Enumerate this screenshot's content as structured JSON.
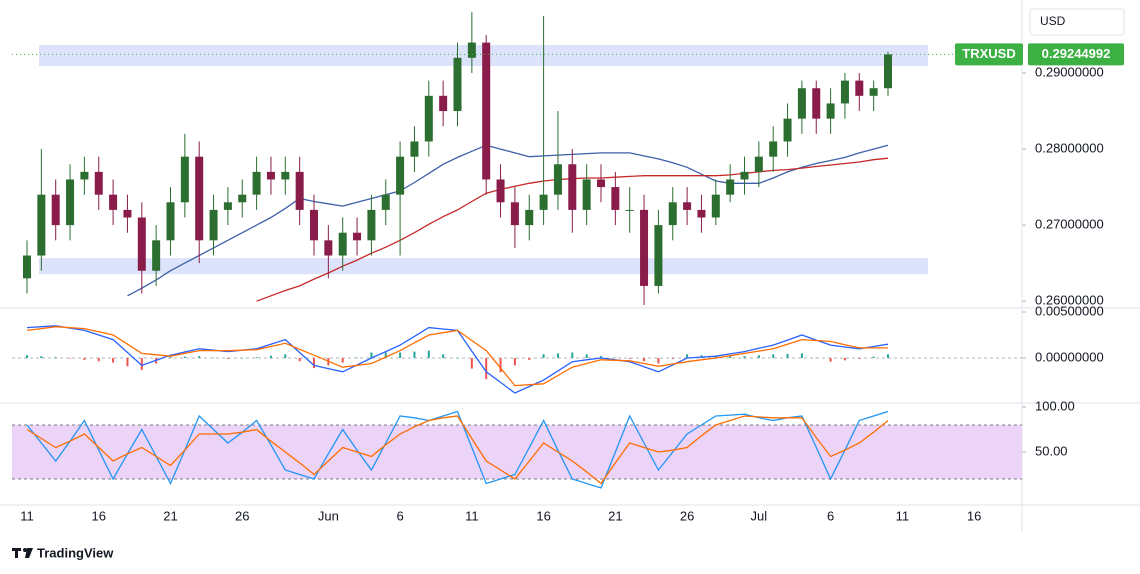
{
  "chart_data": [
    {
      "type": "candlestick",
      "symbol": "TRXUSD",
      "currency": "USD",
      "categories": [
        "11",
        null,
        null,
        null,
        null,
        "16",
        null,
        null,
        null,
        null,
        "21",
        null,
        null,
        null,
        null,
        "26",
        null,
        null,
        null,
        null,
        null,
        "Jun",
        null,
        null,
        null,
        null,
        "6",
        null,
        null,
        null,
        null,
        "11",
        null,
        null,
        null,
        null,
        "16",
        null,
        null,
        null,
        null,
        "21",
        null,
        null,
        null,
        null,
        "26",
        null,
        null,
        null,
        null,
        "Jul",
        null,
        null,
        null,
        null,
        "6",
        null,
        null,
        null,
        null,
        "11",
        null,
        null,
        null,
        null,
        "16"
      ],
      "open": [
        0.263,
        0.266,
        0.274,
        0.27,
        0.276,
        0.277,
        0.274,
        0.272,
        0.271,
        0.264,
        0.268,
        0.273,
        0.279,
        0.268,
        0.272,
        0.273,
        0.274,
        0.277,
        0.276,
        0.277,
        0.272,
        0.268,
        0.266,
        0.269,
        0.268,
        0.272,
        0.274,
        0.279,
        0.281,
        0.287,
        0.285,
        0.292,
        0.294,
        0.276,
        0.273,
        0.27,
        0.272,
        0.274,
        0.278,
        0.272,
        0.276,
        0.275,
        0.272,
        0.272,
        0.262,
        0.27,
        0.273,
        0.272,
        0.271,
        0.274,
        0.276,
        0.277,
        0.279,
        0.281,
        0.284,
        0.288,
        0.284,
        0.286,
        0.289,
        0.287,
        0.288,
        null,
        null,
        null,
        null,
        null,
        null
      ],
      "high": [
        0.268,
        0.28,
        0.276,
        0.278,
        0.279,
        0.279,
        0.276,
        0.274,
        0.273,
        0.27,
        0.275,
        0.282,
        0.281,
        0.274,
        0.275,
        0.276,
        0.279,
        0.279,
        0.279,
        0.279,
        0.274,
        0.27,
        0.271,
        0.271,
        0.274,
        0.276,
        0.281,
        0.283,
        0.289,
        0.289,
        0.294,
        0.298,
        0.295,
        0.278,
        0.275,
        0.274,
        0.2975,
        0.285,
        0.28,
        0.278,
        0.278,
        0.277,
        0.275,
        0.274,
        0.272,
        0.275,
        0.275,
        0.274,
        0.276,
        0.278,
        0.279,
        0.281,
        0.283,
        0.286,
        0.289,
        0.289,
        0.288,
        0.29,
        0.29,
        0.289,
        0.2928,
        null,
        null,
        null,
        null,
        null,
        null
      ],
      "low": [
        0.261,
        0.264,
        0.268,
        0.268,
        0.274,
        0.272,
        0.27,
        0.269,
        0.261,
        0.262,
        0.266,
        0.271,
        0.265,
        0.266,
        0.27,
        0.271,
        0.272,
        0.274,
        0.274,
        0.27,
        0.266,
        0.263,
        0.264,
        0.266,
        0.266,
        0.27,
        0.266,
        0.277,
        0.279,
        0.283,
        0.283,
        0.29,
        0.274,
        0.271,
        0.267,
        0.268,
        0.27,
        0.272,
        0.269,
        0.27,
        0.273,
        0.27,
        0.269,
        0.2595,
        0.261,
        0.268,
        0.27,
        0.269,
        0.27,
        0.273,
        0.274,
        0.275,
        0.277,
        0.279,
        0.282,
        0.282,
        0.282,
        0.284,
        0.285,
        0.285,
        0.287,
        null,
        null,
        null,
        null,
        null,
        null
      ],
      "close": [
        0.266,
        0.274,
        0.27,
        0.276,
        0.277,
        0.274,
        0.272,
        0.271,
        0.264,
        0.268,
        0.273,
        0.279,
        0.268,
        0.272,
        0.273,
        0.274,
        0.277,
        0.276,
        0.277,
        0.272,
        0.268,
        0.266,
        0.269,
        0.268,
        0.272,
        0.274,
        0.279,
        0.281,
        0.287,
        0.285,
        0.292,
        0.294,
        0.276,
        0.273,
        0.27,
        0.272,
        0.274,
        0.278,
        0.272,
        0.276,
        0.275,
        0.272,
        0.272,
        0.262,
        0.27,
        0.273,
        0.272,
        0.271,
        0.274,
        0.276,
        0.277,
        0.279,
        0.281,
        0.284,
        0.288,
        0.284,
        0.286,
        0.289,
        0.287,
        0.288,
        0.29244992,
        null,
        null,
        null,
        null,
        null,
        null
      ],
      "up_color": "#2b6e2f",
      "down_color": "#8a1c4a",
      "last_color": "#3cb043",
      "series": [
        {
          "color": "#3c5fa8",
          "values": [
            null,
            null,
            null,
            null,
            null,
            null,
            null,
            0.2607,
            0.2617,
            0.2628,
            0.264,
            0.265,
            0.266,
            0.267,
            0.268,
            0.269,
            0.27,
            0.271,
            0.2722,
            0.2735,
            0.2731,
            0.2728,
            0.2725,
            0.273,
            0.2735,
            0.274,
            0.2745,
            0.2756,
            0.2768,
            0.278,
            0.2789,
            0.2797,
            0.2805,
            0.28,
            0.2795,
            0.279,
            0.2791,
            0.2792,
            0.2793,
            0.2794,
            0.2795,
            0.2795,
            0.2795,
            0.2791,
            0.2787,
            0.2782,
            0.2776,
            0.2767,
            0.2758,
            0.2755,
            0.2755,
            0.2755,
            0.2762,
            0.277,
            0.2776,
            0.2781,
            0.2785,
            0.2789,
            0.2795,
            0.28,
            0.2805,
            null,
            null,
            null,
            null,
            null,
            null
          ]
        },
        {
          "color": "#c62828",
          "values": [
            null,
            null,
            null,
            null,
            null,
            null,
            null,
            null,
            null,
            null,
            null,
            null,
            null,
            null,
            null,
            null,
            0.26,
            0.2607,
            0.2614,
            0.262,
            0.2629,
            0.2637,
            0.2646,
            0.2654,
            0.2663,
            0.2671,
            0.268,
            0.269,
            0.2701,
            0.2711,
            0.272,
            0.2731,
            0.2742,
            0.2747,
            0.2751,
            0.2755,
            0.2758,
            0.276,
            0.2761,
            0.2762,
            0.2762,
            0.2763,
            0.2764,
            0.2765,
            0.2765,
            0.2765,
            0.2765,
            0.2765,
            0.2765,
            0.2766,
            0.2768,
            0.277,
            0.2772,
            0.2773,
            0.2775,
            0.2777,
            0.2779,
            0.2781,
            0.2783,
            0.2786,
            0.2788,
            null,
            null,
            null,
            null,
            null,
            null
          ]
        }
      ],
      "zones": [
        {
          "low": 0.29092,
          "high": 0.29368
        },
        {
          "low": 0.26355,
          "high": 0.26566
        }
      ],
      "zone_color": "#dce3fb",
      "ylim": [
        0.2591,
        0.2996
      ],
      "yticks": [
        {
          "value": 0.29,
          "label": "0.29000000"
        },
        {
          "value": 0.28,
          "label": "0.28000000"
        },
        {
          "value": 0.27,
          "label": "0.27000000"
        },
        {
          "value": 0.26,
          "label": "0.26000000"
        }
      ]
    },
    {
      "type": "macd",
      "macd": {
        "color": "#2962ff",
        "values": [
          0.0033,
          0.0034,
          0.0035,
          0.00325,
          0.003,
          0.0025,
          0.002,
          0.0006,
          -0.0008,
          -0.00025,
          0.0003,
          0.00065,
          0.001,
          0.00085,
          0.0007,
          0.00085,
          0.001,
          0.0015,
          0.002,
          0.0006,
          -0.0008,
          -0.00115,
          -0.0015,
          -0.00075,
          0,
          0.0007,
          0.0014,
          0.00235,
          0.0033,
          0.00315,
          0.003,
          0.00075,
          -0.0015,
          -0.00265,
          -0.0038,
          -0.0031,
          -0.0024,
          -0.0014,
          -0.0004,
          -0.0002,
          0,
          -0.0002,
          -0.0004,
          -0.00095,
          -0.0015,
          -0.00075,
          0,
          0.0001,
          0.0002,
          0.00045,
          0.0007,
          0.00105,
          0.0014,
          0.00195,
          0.0025,
          0.00195,
          0.0014,
          0.0012,
          0.001,
          0.00125,
          0.0015,
          null,
          null,
          null,
          null,
          null,
          null
        ]
      },
      "signal": {
        "color": "#ff6d00",
        "values": [
          0.003,
          0.0032,
          0.0034,
          0.0033,
          0.0032,
          0.00285,
          0.0025,
          0.0015,
          0.0005,
          0.00035,
          0.0002,
          0.0005,
          0.0008,
          0.0008,
          0.0008,
          0.00085,
          0.0009,
          0.00125,
          0.0016,
          0.00095,
          0.0003,
          -0.00035,
          -0.001,
          -0.0008,
          -0.0006,
          0.0001,
          0.0008,
          0.00165,
          0.0025,
          0.00275,
          0.003,
          0.0019,
          0.0008,
          -0.0011,
          -0.003,
          -0.0029,
          -0.0028,
          -0.0019,
          -0.001,
          -0.0006,
          -0.0002,
          -0.00025,
          -0.0003,
          -0.0006,
          -0.0009,
          -0.00065,
          -0.0004,
          -0.0002,
          0,
          0.00025,
          0.0005,
          0.00075,
          0.001,
          0.0015,
          0.002,
          0.0019,
          0.0018,
          0.00145,
          0.0011,
          0.0011,
          0.0011,
          null,
          null,
          null,
          null,
          null,
          null
        ]
      },
      "histogram": {
        "up_color": "#26a69a",
        "down_color": "#ef5350",
        "values": [
          0.0003,
          0.0002,
          0.0001,
          -5e-05,
          -0.0002,
          -0.00035,
          -0.0005,
          -0.0009,
          -0.0013,
          -0.0006,
          0.0001,
          0.00015,
          0.0002,
          5e-05,
          -0.0001,
          0,
          0.0001,
          0.00025,
          0.0004,
          -0.00035,
          -0.0011,
          -0.0008,
          -0.0005,
          5e-05,
          0.0006,
          0.0006,
          0.0006,
          0.0007,
          0.0008,
          0.0004,
          0,
          -0.00115,
          -0.0023,
          -0.00155,
          -0.0008,
          -0.0002,
          0.0004,
          0.0005,
          0.0006,
          0.0004,
          0.0002,
          5e-05,
          -0.0001,
          -0.00035,
          -0.0006,
          -0.0001,
          0.0004,
          0.0003,
          0.0002,
          0.0002,
          0.0002,
          0.0003,
          0.0004,
          0.00045,
          0.0005,
          5e-05,
          -0.0004,
          -0.00025,
          -0.0001,
          0.00015,
          0.0004,
          null,
          null,
          null,
          null,
          null,
          null
        ]
      },
      "ylim": [
        -0.00489,
        0.005435
      ],
      "yticks": [
        {
          "value": 0.005,
          "label": "0.00500000"
        },
        {
          "value": 0,
          "label": "0.00000000"
        }
      ]
    },
    {
      "type": "stoch_rsi",
      "k": {
        "color": "#2196f3",
        "values": [
          80,
          60,
          40,
          62,
          85,
          52,
          20,
          48,
          75,
          45,
          15,
          52,
          90,
          75,
          60,
          72,
          85,
          58,
          30,
          25,
          20,
          48,
          75,
          52,
          30,
          60,
          90,
          88,
          85,
          90,
          95,
          55,
          15,
          20,
          25,
          55,
          85,
          52,
          20,
          15,
          10,
          50,
          90,
          60,
          30,
          50,
          70,
          80,
          90,
          91,
          92,
          88,
          85,
          88,
          90,
          55,
          20,
          52,
          85,
          90,
          95,
          null,
          null,
          null,
          null,
          null,
          null
        ]
      },
      "d": {
        "color": "#ff6d00",
        "values": [
          75,
          65,
          55,
          62,
          70,
          55,
          40,
          48,
          55,
          45,
          35,
          52,
          70,
          70,
          70,
          72,
          75,
          62,
          50,
          38,
          25,
          40,
          55,
          50,
          45,
          58,
          70,
          78,
          85,
          88,
          90,
          65,
          40,
          30,
          20,
          40,
          60,
          50,
          40,
          28,
          15,
          38,
          60,
          55,
          50,
          52,
          55,
          68,
          80,
          85,
          90,
          89,
          88,
          88,
          88,
          66,
          45,
          52,
          60,
          72,
          85,
          null,
          null,
          null,
          null,
          null,
          null
        ]
      },
      "band": [
        20,
        80
      ],
      "band_color": "#ecd3f8",
      "ylim": [
        -8.89,
        104.44
      ],
      "yticks": [
        {
          "value": 100,
          "label": "100.00"
        },
        {
          "value": 50,
          "label": "50.00"
        }
      ]
    }
  ],
  "footer": {
    "brand": "TradingView"
  }
}
